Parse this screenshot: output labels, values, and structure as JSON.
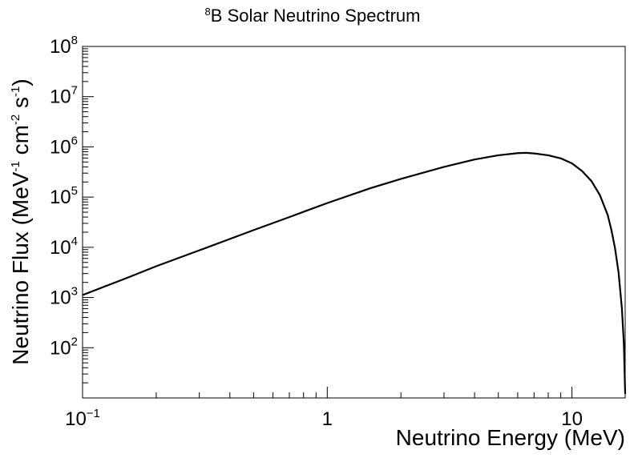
{
  "chart_data": {
    "type": "line",
    "title": {
      "sup": "8",
      "text": "B Solar Neutrino Spectrum"
    },
    "xlabel": "Neutrino Energy (MeV)",
    "ylabel": {
      "part1": "Neutrino Flux (MeV",
      "sup1": "-1",
      "part2": " cm",
      "sup2": "-2",
      "part3": " s",
      "sup3": "-1",
      "part4": ")"
    },
    "x_scale": "log",
    "y_scale": "log",
    "xlim": [
      0.1,
      16.5
    ],
    "ylim": [
      10,
      100000000
    ],
    "grid": false,
    "x_ticks": [
      {
        "value": 0.1,
        "base": "10",
        "exp": "−1"
      },
      {
        "value": 1,
        "base": "1",
        "exp": ""
      },
      {
        "value": 10,
        "base": "10",
        "exp": ""
      }
    ],
    "y_ticks": [
      {
        "value": 100,
        "base": "10",
        "exp": "2"
      },
      {
        "value": 1000,
        "base": "10",
        "exp": "3"
      },
      {
        "value": 10000,
        "base": "10",
        "exp": "4"
      },
      {
        "value": 100000,
        "base": "10",
        "exp": "5"
      },
      {
        "value": 1000000,
        "base": "10",
        "exp": "6"
      },
      {
        "value": 10000000,
        "base": "10",
        "exp": "7"
      },
      {
        "value": 100000000,
        "base": "10",
        "exp": "8"
      }
    ],
    "series": [
      {
        "color": "#000000",
        "x": [
          0.1,
          0.15,
          0.2,
          0.3,
          0.5,
          0.7,
          1.0,
          1.5,
          2.0,
          3.0,
          4.0,
          5.0,
          6.0,
          6.5,
          7.0,
          8.0,
          9.0,
          10.0,
          11.0,
          12.0,
          13.0,
          14.0,
          14.5,
          15.0,
          15.5,
          16.0,
          16.3,
          16.5
        ],
        "y": [
          1120,
          2400,
          4200,
          8700,
          22000,
          40000,
          76000,
          150000,
          230000,
          400000,
          560000,
          680000,
          750000,
          760000,
          740000,
          680000,
          590000,
          470000,
          330000,
          210000,
          110000,
          44000,
          22000,
          9500,
          3200,
          600,
          120,
          12
        ]
      }
    ]
  }
}
